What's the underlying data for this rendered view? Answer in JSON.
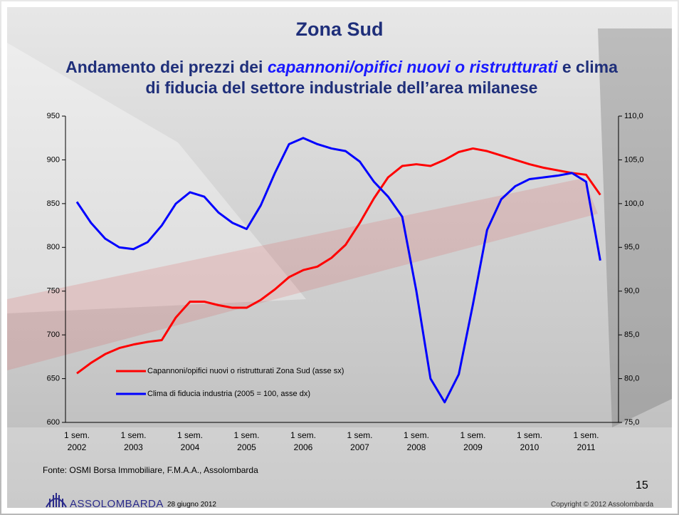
{
  "title": "Zona Sud",
  "subtitle": {
    "part1": "Andamento dei prezzi dei ",
    "italic": "capannoni/opifici nuovi o ristrutturati",
    "part2": " e clima di fiducia del settore industriale dell’area milanese"
  },
  "chart_data": {
    "type": "line",
    "categories": [
      "1 sem.\n2002",
      null,
      null,
      null,
      "1 sem.\n2003",
      null,
      null,
      null,
      "1 sem.\n2004",
      null,
      null,
      null,
      "1 sem.\n2005",
      null,
      null,
      null,
      "1 sem.\n2006",
      null,
      null,
      null,
      "1 sem.\n2007",
      null,
      null,
      null,
      "1 sem.\n2008",
      null,
      null,
      null,
      "1 sem.\n2009",
      null,
      null,
      null,
      "1 sem.\n2010",
      null,
      null,
      null,
      "1 sem.\n2011",
      null
    ],
    "series": [
      {
        "name": "Capannoni/opifici nuovi o ristrutturati Zona Sud (asse sx)",
        "color": "#ff0000",
        "axis": "y",
        "values": [
          656,
          668,
          678,
          685,
          689,
          692,
          694,
          720,
          738,
          738,
          734,
          731,
          731,
          740,
          752,
          766,
          774,
          778,
          788,
          803,
          828,
          856,
          880,
          893,
          895,
          893,
          900,
          909,
          913,
          910,
          905,
          900,
          895,
          891,
          888,
          885,
          883,
          860
        ]
      },
      {
        "name": "Clima di fiducia industria (2005 = 100, asse dx)",
        "color": "#0000ff",
        "axis": "y2",
        "values": [
          100.2,
          97.8,
          96.0,
          95.0,
          94.8,
          95.6,
          97.5,
          100.0,
          101.3,
          100.8,
          99.0,
          97.8,
          97.1,
          99.8,
          103.5,
          106.8,
          107.5,
          106.8,
          106.3,
          106.0,
          104.8,
          102.5,
          100.8,
          98.5,
          90.0,
          80.0,
          77.3,
          80.5,
          88.5,
          97.0,
          100.5,
          102.0,
          102.8,
          103.0,
          103.2,
          103.5,
          102.5,
          93.5
        ]
      }
    ],
    "ylim": [
      600,
      950
    ],
    "yticks": [
      600,
      650,
      700,
      750,
      800,
      850,
      900,
      950
    ],
    "y2lim": [
      75,
      110
    ],
    "y2ticks": [
      {
        "value": 75,
        "label": "75,0"
      },
      {
        "value": 80,
        "label": "80,0"
      },
      {
        "value": 85,
        "label": "85,0"
      },
      {
        "value": 90,
        "label": "90,0"
      },
      {
        "value": 95,
        "label": "95,0"
      },
      {
        "value": 100,
        "label": "100,0"
      },
      {
        "value": 105,
        "label": "105,0"
      },
      {
        "value": 110,
        "label": "110,0"
      }
    ],
    "grid": false
  },
  "source": "Fonte: OSMI Borsa Immobiliare, F.M.A.A., Assolombarda",
  "footer": {
    "page": "15",
    "brand": "ASSOLOMBARDA",
    "date": "28 giugno 2012",
    "copyright": "Copyright © 2012 Assolombarda"
  }
}
